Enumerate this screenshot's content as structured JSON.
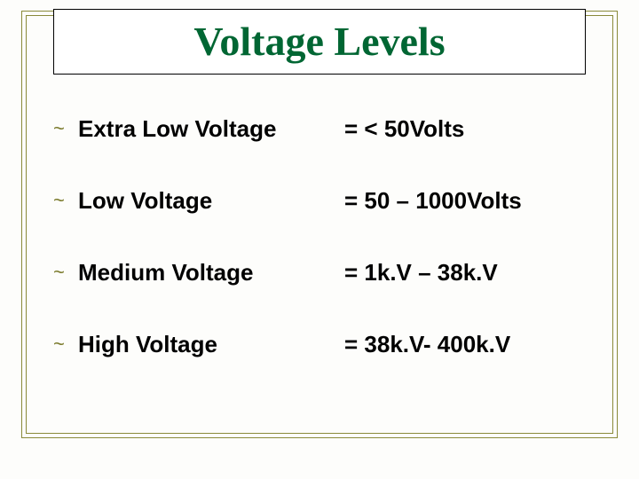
{
  "slide": {
    "title": "Voltage Levels",
    "title_color": "#006633",
    "title_fontsize": 46,
    "title_fontfamily": "Comic Sans MS",
    "background_color": "#fdfdfb",
    "frame_border_color": "#8a8a3a",
    "bullet_glyph": "~",
    "bullet_color": "#7a7a2b",
    "text_color": "#000000",
    "body_fontsize": 26,
    "body_fontweight": "bold",
    "rows": [
      {
        "label": "Extra Low Voltage",
        "value": "= < 50Volts"
      },
      {
        "label": "Low Voltage",
        "value": "= 50 – 1000Volts"
      },
      {
        "label": "Medium Voltage",
        "value": "= 1k.V – 38k.V"
      },
      {
        "label": "High Voltage",
        "value": "= 38k.V- 400k.V"
      }
    ]
  }
}
